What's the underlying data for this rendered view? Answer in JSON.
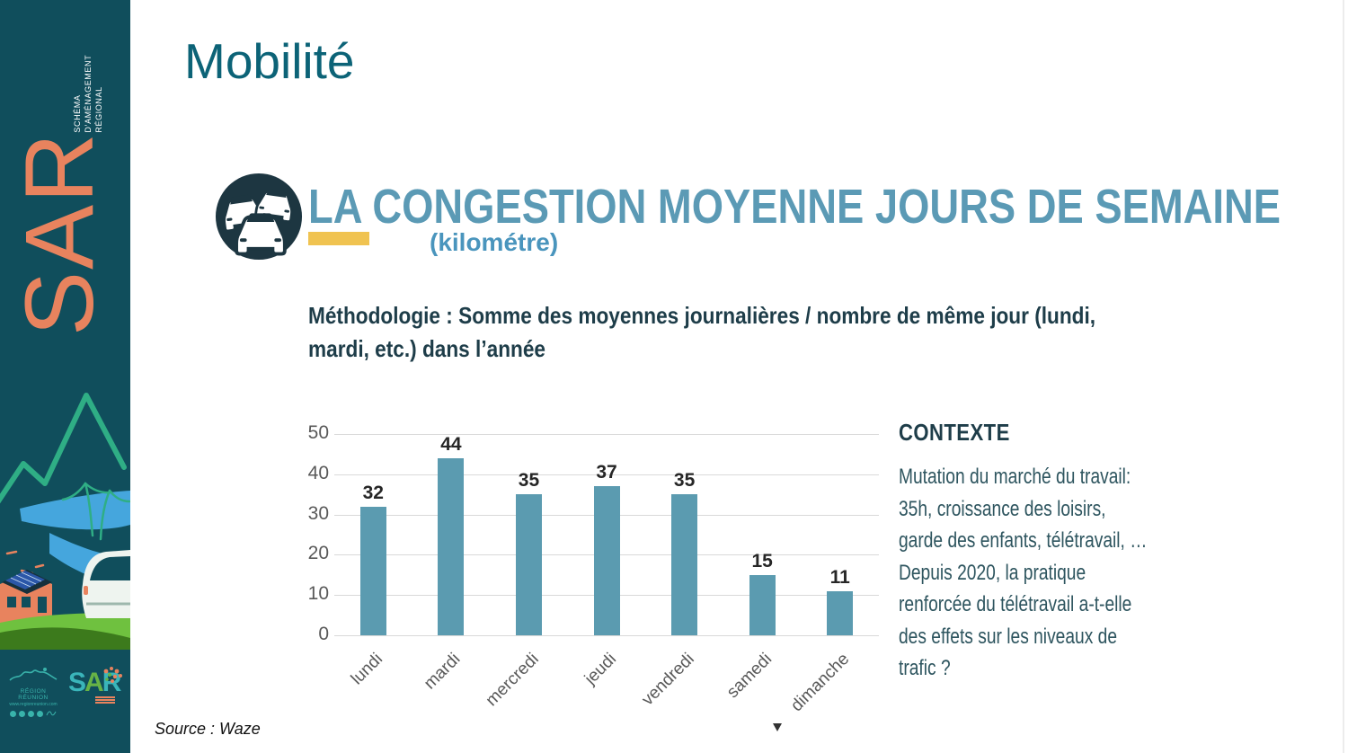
{
  "header": {
    "title": "Mobilité"
  },
  "sidebar": {
    "wordmark": "SAR",
    "program_lines": [
      "SCHÉMA",
      "D’AMÉNAGEMENT",
      "RÉGIONAL"
    ],
    "region_logo": {
      "title": "Région Réunion",
      "url": "www.regionreunion.com"
    },
    "sar_logo": {
      "s": "S",
      "a": "A",
      "r": "R"
    }
  },
  "section": {
    "heading_underlined": "LA",
    "heading_rest": " CONGESTION MOYENNE JOURS DE SEMAINE",
    "unit": "(kilométre)",
    "methodology_lines": [
      "Méthodologie : Somme des moyennes journalières / nombre de même jour (lundi,",
      "mardi, etc.) dans l’année"
    ]
  },
  "context": {
    "heading": "CONTEXTE",
    "lines": [
      "Mutation du marché du travail:",
      "35h, croissance des loisirs,",
      "garde des enfants, télétravail, …",
      "Depuis 2020, la pratique",
      "renforcée du télétravail a-t-elle",
      "des effets sur les niveaux de",
      "trafic ?"
    ]
  },
  "source": "Source : Waze",
  "chart_data": {
    "type": "bar",
    "title": "LA CONGESTION MOYENNE JOURS DE SEMAINE",
    "subtitle": "(kilométre)",
    "categories": [
      "lundi",
      "mardi",
      "mercredi",
      "jeudi",
      "vendredi",
      "samedi",
      "dimanche"
    ],
    "values": [
      32,
      44,
      35,
      37,
      35,
      15,
      11
    ],
    "xlabel": "",
    "ylabel": "",
    "ylim": [
      0,
      50
    ],
    "yticks": [
      0,
      10,
      20,
      30,
      40,
      50
    ],
    "grid": true,
    "legend": false,
    "bar_color": "#5b9bb0"
  },
  "colors": {
    "sidebar_bg": "#104e5c",
    "accent_orange": "#e8835e",
    "title_teal": "#0c6377",
    "heading_blue": "#5b9ab5",
    "unit_blue": "#4a95bd",
    "accent_yellow": "#f0c351",
    "dark_teal_text": "#1e3d49",
    "context_body_text": "#2e555f",
    "bar_fill": "#5b9bb0",
    "gridline": "#d9d9d9",
    "axis_text": "#595959",
    "icon_circle": "#1d3641"
  }
}
